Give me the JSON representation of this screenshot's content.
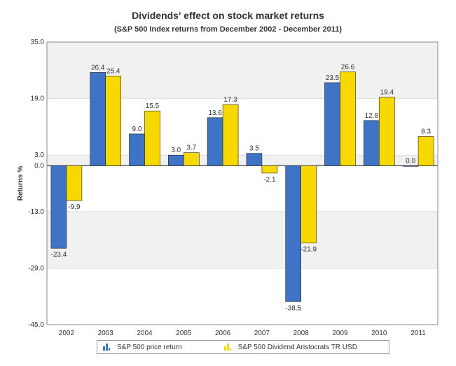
{
  "chart_data": {
    "type": "bar",
    "title": "Dividends' effect on stock market returns",
    "subtitle": "(S&P 500 Index returns from December 2002 - December 2011)",
    "xlabel": "",
    "ylabel": "Returns %",
    "ylim": [
      -45.0,
      35.0
    ],
    "yticks": [
      "35.0",
      "19.0",
      "3.0",
      "0.0",
      "-13.0",
      "-29.0",
      "-45.0"
    ],
    "categories": [
      "2002",
      "2003",
      "2004",
      "2005",
      "2006",
      "2007",
      "2008",
      "2009",
      "2010",
      "2011"
    ],
    "series": [
      {
        "name": "S&P 500 price return",
        "color": "#3F73C6",
        "values": [
          -23.4,
          26.4,
          9.0,
          3.0,
          13.6,
          3.5,
          -38.5,
          23.5,
          12.8,
          0.0
        ],
        "labels": [
          "-23.4",
          "26.4",
          "9.0",
          "3.0",
          "13.6",
          "3.5",
          "-38.5",
          "23.5",
          "12.8",
          "0.0"
        ]
      },
      {
        "name": "S&P 500 Dividend Aristocrats TR USD",
        "color": "#F7D900",
        "values": [
          -9.9,
          25.4,
          15.5,
          3.7,
          17.3,
          -2.1,
          -21.9,
          26.6,
          19.4,
          8.3
        ],
        "labels": [
          "-9.9",
          "25.4",
          "15.5",
          "3.7",
          "17.3",
          "-2.1",
          "-21.9",
          "26.6",
          "19.4",
          "8.3"
        ]
      }
    ],
    "grid": true,
    "legend": "bottom"
  }
}
